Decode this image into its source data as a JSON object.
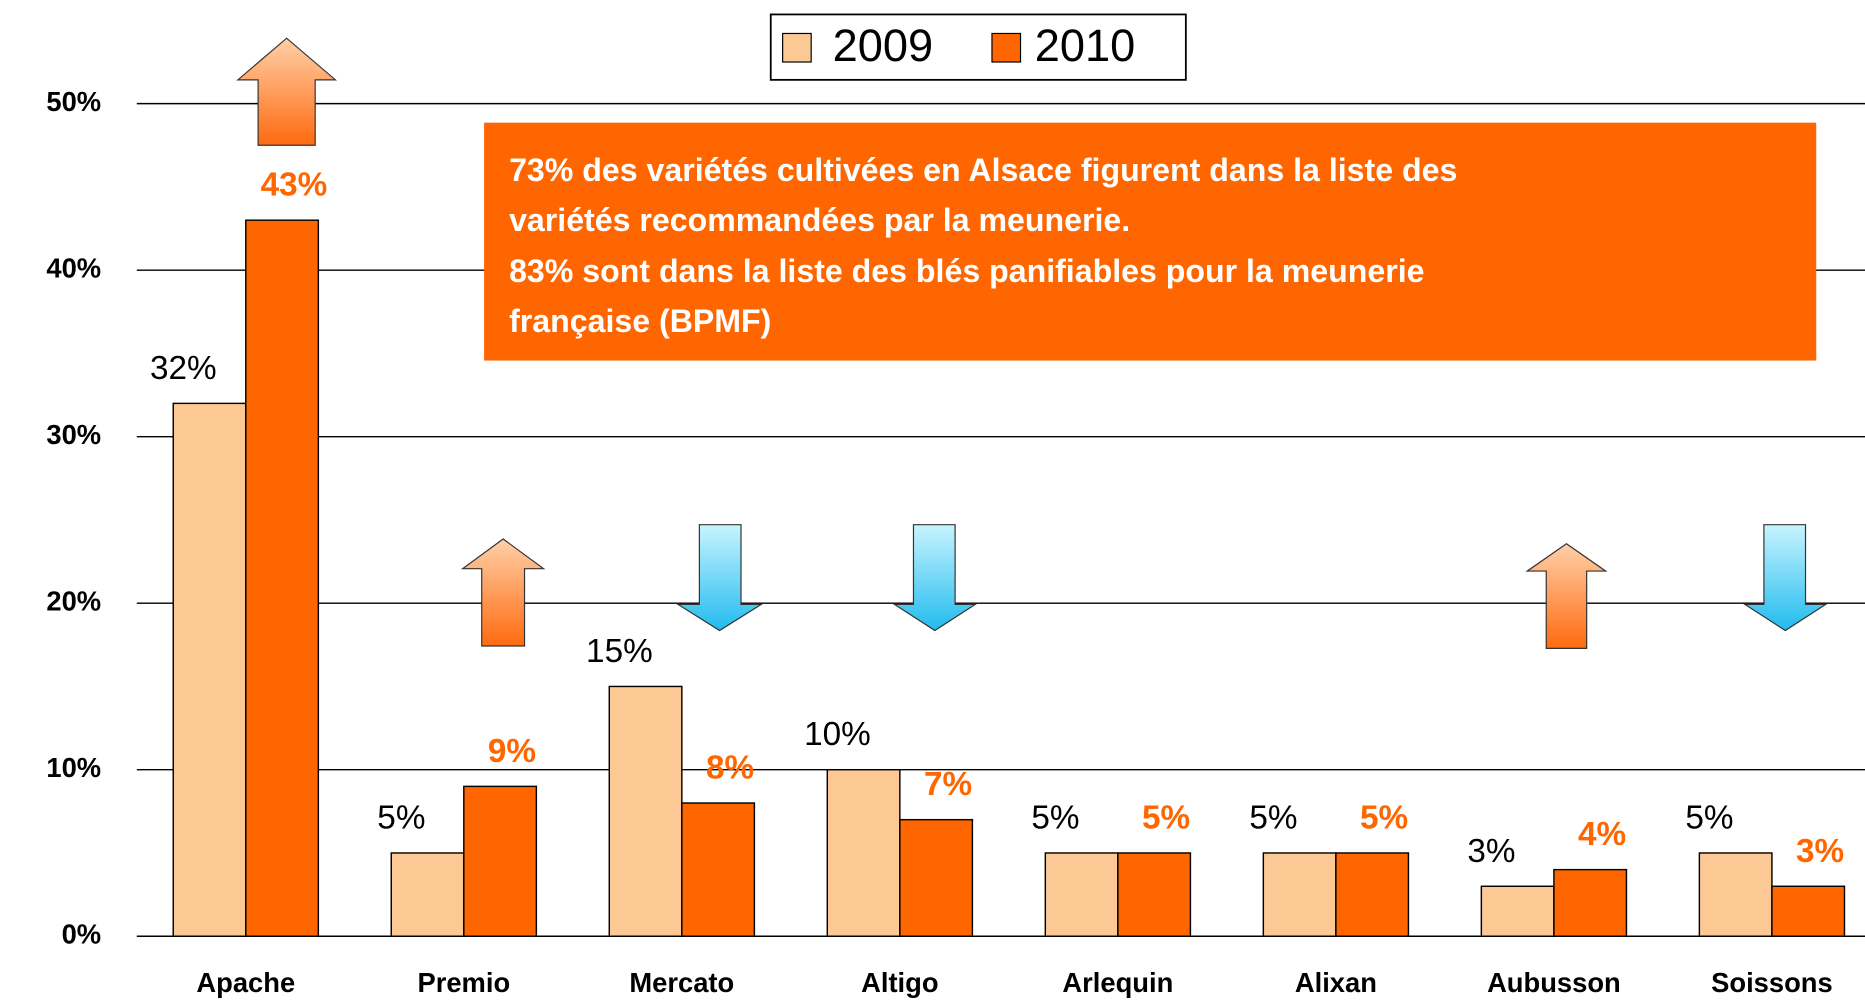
{
  "chart_data": {
    "type": "bar",
    "categories": [
      "Apache",
      "Premio",
      "Mercato",
      "Altigo",
      "Arlequin",
      "Alixan",
      "Aubusson",
      "Soissons"
    ],
    "series": [
      {
        "name": "2009",
        "color": "#fcc995",
        "values": [
          32,
          5,
          15,
          10,
          5,
          5,
          3,
          5
        ],
        "value_labels": [
          "32%",
          "5%",
          "15%",
          "10%",
          "5%",
          "5%",
          "3%",
          "5%"
        ]
      },
      {
        "name": "2010",
        "color": "#ff6600",
        "values": [
          43,
          9,
          8,
          7,
          5,
          5,
          4,
          3
        ],
        "value_labels": [
          "43%",
          "9%",
          "8%",
          "7%",
          "5%",
          "5%",
          "4%",
          "3%"
        ]
      }
    ],
    "ylim": [
      0,
      50
    ],
    "yticks": [
      {
        "value": 0,
        "label": "0%"
      },
      {
        "value": 10,
        "label": "10%"
      },
      {
        "value": 20,
        "label": "20%"
      },
      {
        "value": 30,
        "label": "30%"
      },
      {
        "value": 40,
        "label": "40%"
      },
      {
        "value": 50,
        "label": "50%"
      }
    ],
    "grid": true,
    "legend": "top",
    "annotation": [
      "73% des variétés cultivées en Alsace figurent dans la liste des",
      "variétés recommandées par la meunerie.",
      "83% sont dans la liste des blés panifiables pour la meunerie",
      "française (BPMF)"
    ]
  }
}
